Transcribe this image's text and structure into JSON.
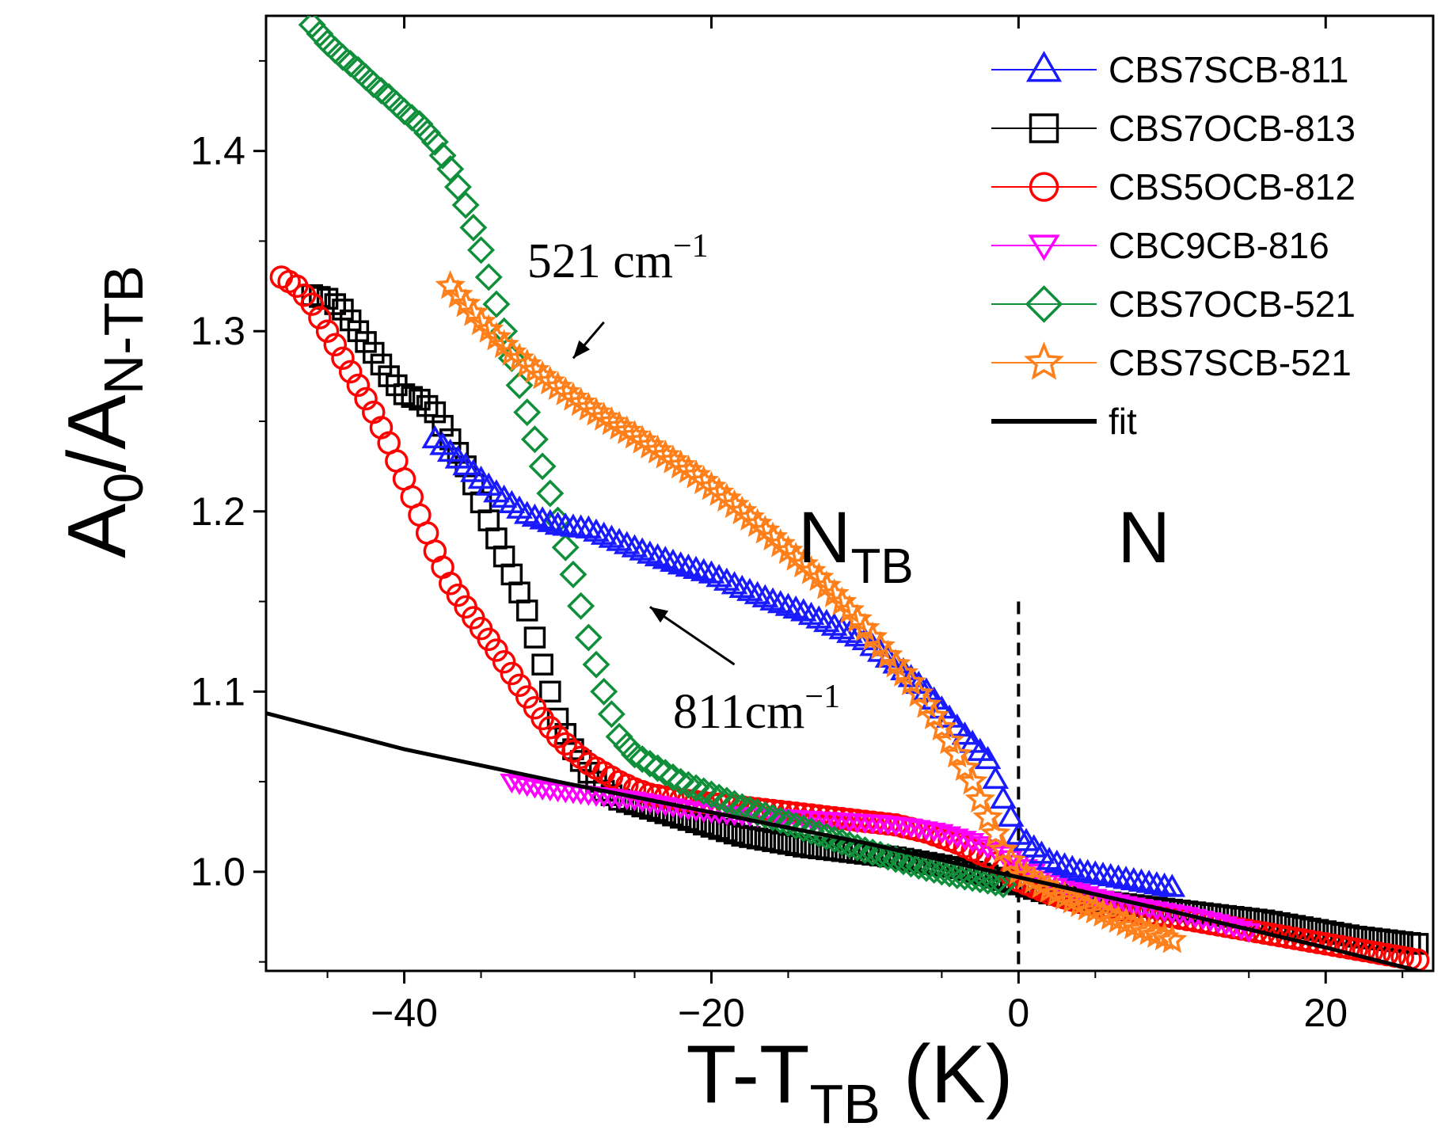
{
  "chart_data": {
    "type": "scatter",
    "xlabel": {
      "main": "T-T",
      "sub": "TB",
      "unit": " (K)"
    },
    "ylabel": {
      "main": "A",
      "sub0": "0",
      "mid": "/A",
      "sub1": "N-TB"
    },
    "xlim": [
      -49,
      27
    ],
    "ylim": [
      0.945,
      1.475
    ],
    "xticks": [
      -40,
      -20,
      0,
      20
    ],
    "xtick_labels": [
      "−40",
      "−20",
      "0",
      "20"
    ],
    "yticks": [
      1.0,
      1.1,
      1.2,
      1.3,
      1.4
    ],
    "ytick_labels": [
      "1.0",
      "1.1",
      "1.2",
      "1.3",
      "1.4"
    ],
    "phase_labels": {
      "ntb_main": "N",
      "ntb_sub": "TB",
      "ntb_x": -11,
      "n": "N",
      "n_x": 8,
      "y": 1.185
    },
    "transition_line_x": 0,
    "annotations": [
      {
        "text": "521 cm",
        "sup": "−1",
        "x": -32,
        "y": 1.33,
        "arrow_from": [
          -27,
          1.305
        ],
        "arrow_to": [
          -29,
          1.285
        ]
      },
      {
        "text": "811cm",
        "sup": "−1",
        "x": -22.5,
        "y": 1.08,
        "arrow_from": [
          -18.5,
          1.115
        ],
        "arrow_to": [
          -24,
          1.147
        ]
      }
    ],
    "series": [
      {
        "name": "CBS7SCB-811",
        "color": "#1a1aff",
        "marker": "triangle-up",
        "x": [
          -38,
          -36,
          -34,
          -32,
          -30,
          -28,
          -26,
          -24,
          -22,
          -20,
          -18,
          -16,
          -14,
          -12,
          -10,
          -8,
          -6,
          -4,
          -2,
          -1,
          0,
          2,
          4,
          6,
          8,
          10
        ],
        "y": [
          1.24,
          1.225,
          1.21,
          1.198,
          1.192,
          1.19,
          1.183,
          1.176,
          1.17,
          1.165,
          1.157,
          1.15,
          1.144,
          1.136,
          1.128,
          1.115,
          1.1,
          1.08,
          1.062,
          1.04,
          1.02,
          1.006,
          1.0,
          0.997,
          0.994,
          0.991
        ]
      },
      {
        "name": "CBS7OCB-813",
        "color": "#000000",
        "marker": "square",
        "x": [
          -46,
          -45,
          -44,
          -43,
          -42,
          -41,
          -40,
          -39,
          -38,
          -37,
          -36,
          -35,
          -34,
          -33,
          -32,
          -31,
          -30,
          -29,
          -28,
          -27,
          -26,
          -24,
          -22,
          -20,
          -18,
          -16,
          -14,
          -12,
          -10,
          -8,
          -6,
          -4,
          -2,
          0,
          2,
          4,
          6,
          8,
          10,
          12,
          14,
          16,
          18,
          20,
          22,
          24,
          26
        ],
        "y": [
          1.32,
          1.318,
          1.312,
          1.3,
          1.288,
          1.275,
          1.265,
          1.262,
          1.255,
          1.24,
          1.225,
          1.205,
          1.185,
          1.165,
          1.145,
          1.115,
          1.085,
          1.068,
          1.055,
          1.045,
          1.04,
          1.035,
          1.03,
          1.025,
          1.02,
          1.017,
          1.014,
          1.012,
          1.01,
          1.008,
          1.005,
          1.002,
          0.998,
          0.993,
          0.988,
          0.985,
          0.983,
          0.981,
          0.979,
          0.977,
          0.975,
          0.973,
          0.97,
          0.967,
          0.964,
          0.962,
          0.96
        ]
      },
      {
        "name": "CBS5OCB-812",
        "color": "#ff0000",
        "marker": "circle",
        "x": [
          -48,
          -47,
          -46,
          -45,
          -44,
          -43,
          -42,
          -41,
          -40,
          -39,
          -38,
          -37,
          -36,
          -35,
          -34,
          -33,
          -32,
          -31,
          -30,
          -29,
          -28,
          -27,
          -26,
          -25,
          -24,
          -22,
          -20,
          -18,
          -16,
          -14,
          -12,
          -10,
          -8,
          -6,
          -4,
          -2,
          0,
          2,
          4,
          6,
          8,
          10,
          12,
          14,
          16,
          18,
          20,
          22,
          24,
          26
        ],
        "y": [
          1.33,
          1.325,
          1.315,
          1.3,
          1.285,
          1.27,
          1.255,
          1.238,
          1.218,
          1.198,
          1.178,
          1.16,
          1.147,
          1.135,
          1.123,
          1.11,
          1.097,
          1.085,
          1.075,
          1.067,
          1.06,
          1.055,
          1.05,
          1.046,
          1.043,
          1.04,
          1.038,
          1.036,
          1.034,
          1.032,
          1.03,
          1.028,
          1.026,
          1.022,
          1.016,
          1.008,
          0.995,
          0.988,
          0.983,
          0.98,
          0.977,
          0.975,
          0.972,
          0.969,
          0.966,
          0.963,
          0.96,
          0.957,
          0.954,
          0.951
        ]
      },
      {
        "name": "CBC9CB-816",
        "color": "#ff00ff",
        "marker": "triangle-down",
        "x": [
          -33,
          -31,
          -29,
          -27,
          -25,
          -23,
          -21,
          -19,
          -17,
          -15,
          -13,
          -11,
          -9,
          -7,
          -5,
          -3,
          -1,
          1,
          3,
          5,
          7,
          9,
          11,
          13,
          15
        ],
        "y": [
          1.05,
          1.046,
          1.044,
          1.042,
          1.04,
          1.037,
          1.034,
          1.032,
          1.031,
          1.03,
          1.029,
          1.028,
          1.027,
          1.025,
          1.022,
          1.017,
          1.01,
          1.0,
          0.992,
          0.986,
          0.982,
          0.979,
          0.976,
          0.972,
          0.967
        ]
      },
      {
        "name": "CBS7OCB-521",
        "color": "#0f8f3a",
        "marker": "diamond",
        "x": [
          -46,
          -45,
          -44,
          -43,
          -42,
          -41,
          -40,
          -39,
          -38,
          -37,
          -36,
          -35,
          -34,
          -33,
          -32,
          -31,
          -30,
          -29,
          -28,
          -27,
          -26,
          -25,
          -24,
          -23,
          -22,
          -20,
          -18,
          -16,
          -14,
          -12,
          -10,
          -8,
          -6,
          -4,
          -2,
          -1
        ],
        "y": [
          1.47,
          1.46,
          1.452,
          1.445,
          1.437,
          1.43,
          1.422,
          1.415,
          1.405,
          1.39,
          1.37,
          1.345,
          1.315,
          1.285,
          1.255,
          1.225,
          1.195,
          1.165,
          1.13,
          1.1,
          1.075,
          1.065,
          1.06,
          1.055,
          1.05,
          1.043,
          1.036,
          1.03,
          1.024,
          1.018,
          1.012,
          1.007,
          1.002,
          0.998,
          0.995,
          0.993
        ]
      },
      {
        "name": "CBS7SCB-521",
        "color": "#ff7f1a",
        "marker": "star",
        "x": [
          -37,
          -35,
          -33,
          -31,
          -29,
          -27,
          -25,
          -23,
          -21,
          -19,
          -17,
          -15,
          -13,
          -11,
          -9,
          -7,
          -5,
          -3,
          -2,
          -1,
          0,
          2,
          4,
          6,
          8,
          10
        ],
        "y": [
          1.325,
          1.305,
          1.288,
          1.275,
          1.263,
          1.252,
          1.242,
          1.231,
          1.22,
          1.207,
          1.193,
          1.178,
          1.163,
          1.145,
          1.125,
          1.105,
          1.08,
          1.05,
          1.03,
          1.012,
          1.0,
          0.99,
          0.982,
          0.975,
          0.968,
          0.962
        ]
      },
      {
        "name": "fit",
        "color": "#000000",
        "marker": "line",
        "x": [
          -49,
          -40,
          -30,
          -20,
          -10,
          0,
          10,
          20,
          27
        ],
        "y": [
          1.088,
          1.068,
          1.05,
          1.033,
          1.016,
          0.997,
          0.978,
          0.958,
          0.943
        ]
      }
    ]
  }
}
